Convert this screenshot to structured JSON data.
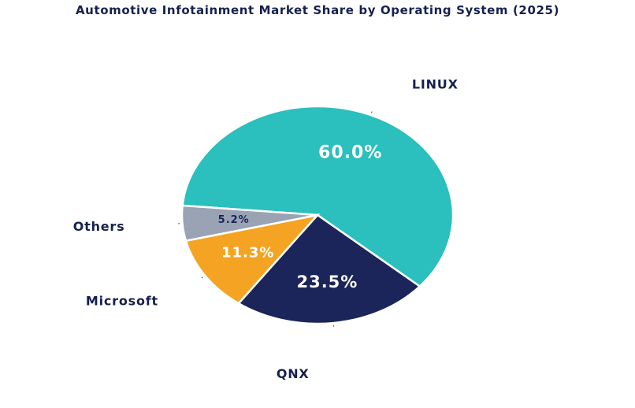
{
  "chart_data": {
    "type": "pie",
    "title": "Automotive Infotainment Market Share by Operating System (2025)",
    "categories": [
      "LINUX",
      "QNX",
      "Microsoft",
      "Others"
    ],
    "values": [
      60.0,
      23.5,
      11.3,
      5.2
    ],
    "value_labels": [
      "60.0%",
      "23.5%",
      "11.3%",
      "5.2%"
    ],
    "colors": [
      "#2bbfbd",
      "#1b2559",
      "#f4a422",
      "#9aa3b4"
    ],
    "value_label_colors": [
      "#ffffff",
      "#ffffff",
      "#ffffff",
      "#1b2559"
    ],
    "start_angle_deg": -175,
    "direction": "clockwise",
    "legend": "none",
    "text_color": "#16204f"
  }
}
